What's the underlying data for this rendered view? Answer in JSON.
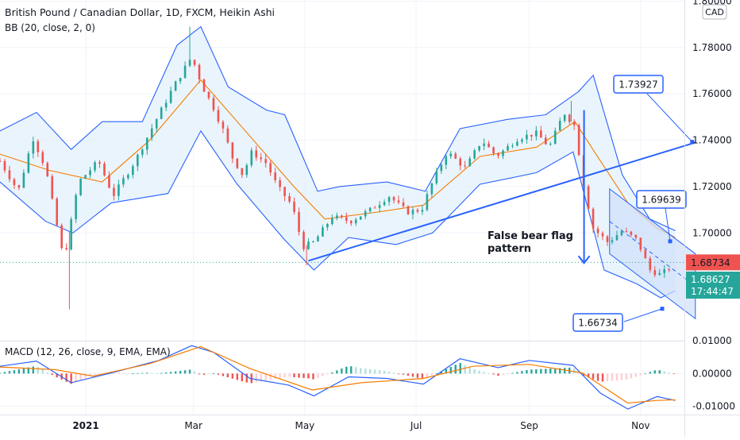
{
  "header": {
    "symbol_line": "British Pound / Canadian Dollar, 1D, FXCM, Heikin Ashi",
    "indicator_line": "BB (20, close, 2, 0)",
    "currency_button": "CAD"
  },
  "macd_label": "MACD (12, 26, close, 9, EMA, EMA)",
  "colors": {
    "up": "#26a69a",
    "down": "#ef5350",
    "band": "#2962ff",
    "basis": "#f57c00",
    "band_fill": "#e3f0fb",
    "channel_fill": "#cfe0fa",
    "trendline": "#2962ff"
  },
  "chart_data": [
    {
      "type": "candlestick",
      "name": "price",
      "y_ticks": [
        "1.80000",
        "1.78000",
        "1.76000",
        "1.74000",
        "1.72000",
        "1.70000"
      ],
      "ylim": [
        1.6535,
        1.8005
      ],
      "x_ticks": [
        "2021",
        "Mar",
        "May",
        "Jul",
        "Sep",
        "Nov"
      ],
      "x_range": [
        "2020-11-15",
        "2021-11-25"
      ],
      "tick_dates": [
        "2021-01-01",
        "2021-03-01",
        "2021-05-01",
        "2021-07-01",
        "2021-09-01",
        "2021-11-01"
      ],
      "candle_path": [
        [
          "2020-11-15",
          1.731
        ],
        [
          "2020-11-25",
          1.718
        ],
        [
          "2020-12-03",
          1.741
        ],
        [
          "2020-12-10",
          1.728
        ],
        [
          "2020-12-20",
          1.688
        ],
        [
          "2020-12-28",
          1.722
        ],
        [
          "2021-01-08",
          1.731
        ],
        [
          "2021-01-16",
          1.716
        ],
        [
          "2021-01-28",
          1.731
        ],
        [
          "2021-02-08",
          1.748
        ],
        [
          "2021-02-18",
          1.763
        ],
        [
          "2021-02-28",
          1.776
        ],
        [
          "2021-03-06",
          1.763
        ],
        [
          "2021-03-12",
          1.754
        ],
        [
          "2021-03-18",
          1.743
        ],
        [
          "2021-03-22",
          1.733
        ],
        [
          "2021-03-28",
          1.725
        ],
        [
          "2021-04-02",
          1.735
        ],
        [
          "2021-04-10",
          1.73
        ],
        [
          "2021-04-16",
          1.72
        ],
        [
          "2021-04-24",
          1.712
        ],
        [
          "2021-04-30",
          1.694
        ],
        [
          "2021-05-06",
          1.696
        ],
        [
          "2021-05-16",
          1.707
        ],
        [
          "2021-05-26",
          1.705
        ],
        [
          "2021-06-06",
          1.71
        ],
        [
          "2021-06-16",
          1.716
        ],
        [
          "2021-06-26",
          1.709
        ],
        [
          "2021-07-04",
          1.71
        ],
        [
          "2021-07-10",
          1.722
        ],
        [
          "2021-07-18",
          1.735
        ],
        [
          "2021-07-28",
          1.728
        ],
        [
          "2021-08-06",
          1.74
        ],
        [
          "2021-08-14",
          1.733
        ],
        [
          "2021-08-26",
          1.741
        ],
        [
          "2021-09-05",
          1.743
        ],
        [
          "2021-09-12",
          1.737
        ],
        [
          "2021-09-20",
          1.752
        ],
        [
          "2021-09-26",
          1.746
        ],
        [
          "2021-10-01",
          1.72
        ],
        [
          "2021-10-06",
          1.702
        ],
        [
          "2021-10-14",
          1.696
        ],
        [
          "2021-10-22",
          1.701
        ],
        [
          "2021-10-30",
          1.697
        ],
        [
          "2021-11-06",
          1.684
        ],
        [
          "2021-11-12",
          1.682
        ],
        [
          "2021-11-19",
          1.686
        ]
      ],
      "spike_highs": [
        [
          "2021-02-27",
          1.789
        ],
        [
          "2021-09-24",
          1.757
        ]
      ],
      "spike_lows": [
        [
          "2020-12-23",
          1.667
        ],
        [
          "2021-05-02",
          1.686
        ]
      ],
      "bollinger_upper": [
        [
          "2020-11-15",
          1.744
        ],
        [
          "2020-12-05",
          1.752
        ],
        [
          "2020-12-24",
          1.736
        ],
        [
          "2021-01-10",
          1.748
        ],
        [
          "2021-02-01",
          1.748
        ],
        [
          "2021-02-20",
          1.781
        ],
        [
          "2021-03-05",
          1.789
        ],
        [
          "2021-03-20",
          1.763
        ],
        [
          "2021-04-10",
          1.753
        ],
        [
          "2021-04-20",
          1.751
        ],
        [
          "2021-05-08",
          1.718
        ],
        [
          "2021-05-20",
          1.72
        ],
        [
          "2021-06-15",
          1.722
        ],
        [
          "2021-07-06",
          1.718
        ],
        [
          "2021-07-25",
          1.745
        ],
        [
          "2021-08-20",
          1.749
        ],
        [
          "2021-09-10",
          1.751
        ],
        [
          "2021-09-28",
          1.761
        ],
        [
          "2021-10-06",
          1.768
        ],
        [
          "2021-10-22",
          1.725
        ],
        [
          "2021-11-06",
          1.706
        ],
        [
          "2021-11-20",
          1.701
        ]
      ],
      "bollinger_basis": [
        [
          "2020-11-15",
          1.734
        ],
        [
          "2020-12-12",
          1.727
        ],
        [
          "2021-01-10",
          1.722
        ],
        [
          "2021-02-05",
          1.74
        ],
        [
          "2021-03-05",
          1.766
        ],
        [
          "2021-03-25",
          1.748
        ],
        [
          "2021-04-25",
          1.72
        ],
        [
          "2021-05-12",
          1.706
        ],
        [
          "2021-06-10",
          1.709
        ],
        [
          "2021-07-05",
          1.712
        ],
        [
          "2021-08-05",
          1.733
        ],
        [
          "2021-09-05",
          1.737
        ],
        [
          "2021-09-26",
          1.748
        ],
        [
          "2021-10-10",
          1.731
        ],
        [
          "2021-10-25",
          1.713
        ],
        [
          "2021-11-10",
          1.702
        ],
        [
          "2021-11-20",
          1.698
        ]
      ],
      "bollinger_lower": [
        [
          "2020-11-15",
          1.722
        ],
        [
          "2020-12-10",
          1.705
        ],
        [
          "2020-12-25",
          1.7
        ],
        [
          "2021-01-15",
          1.713
        ],
        [
          "2021-02-15",
          1.717
        ],
        [
          "2021-03-05",
          1.744
        ],
        [
          "2021-03-25",
          1.721
        ],
        [
          "2021-04-20",
          1.697
        ],
        [
          "2021-05-06",
          1.684
        ],
        [
          "2021-05-25",
          1.698
        ],
        [
          "2021-06-20",
          1.695
        ],
        [
          "2021-07-10",
          1.7
        ],
        [
          "2021-08-05",
          1.721
        ],
        [
          "2021-09-05",
          1.726
        ],
        [
          "2021-09-25",
          1.735
        ],
        [
          "2021-10-12",
          1.684
        ],
        [
          "2021-10-30",
          1.678
        ],
        [
          "2021-11-12",
          1.672
        ],
        [
          "2021-11-20",
          1.675
        ]
      ],
      "trendline": [
        [
          "2021-05-03",
          1.688
        ],
        [
          "2021-12-01",
          1.739
        ]
      ],
      "channel": {
        "upper": [
          [
            "2021-10-15",
            1.719
          ],
          [
            "2021-12-01",
            1.691
          ]
        ],
        "lower": [
          [
            "2021-10-15",
            1.691
          ],
          [
            "2021-12-01",
            1.663
          ]
        ]
      },
      "annotations": {
        "false_bear_flag": "False bear flag\npattern",
        "arrow_from": [
          "2021-10-01",
          1.753
        ],
        "arrow_to": [
          "2021-10-01",
          1.687
        ],
        "callout_top": "1.73927",
        "callout_mid": "1.69639",
        "callout_bottom": "1.66734",
        "dotted_level": 1.6873
      },
      "price_labels": {
        "red_tag": "1.68734",
        "green_tag": "1.68627",
        "countdown": "17:44:47"
      }
    },
    {
      "type": "line",
      "name": "MACD",
      "y_ticks": [
        "0.01000",
        "0.00000",
        "-0.01000"
      ],
      "ylim": [
        -0.0125,
        0.01
      ],
      "series": [
        {
          "name": "MACD",
          "color": "#2962ff",
          "points": [
            [
              "2020-11-15",
              0.0022
            ],
            [
              "2020-12-05",
              0.0038
            ],
            [
              "2020-12-24",
              -0.0028
            ],
            [
              "2021-01-15",
              0.0002
            ],
            [
              "2021-02-10",
              0.004
            ],
            [
              "2021-02-28",
              0.0085
            ],
            [
              "2021-03-12",
              0.0065
            ],
            [
              "2021-04-01",
              -0.0015
            ],
            [
              "2021-04-22",
              -0.0035
            ],
            [
              "2021-05-06",
              -0.0068
            ],
            [
              "2021-05-25",
              -0.001
            ],
            [
              "2021-06-15",
              -0.0015
            ],
            [
              "2021-07-05",
              -0.0032
            ],
            [
              "2021-07-25",
              0.0045
            ],
            [
              "2021-08-15",
              0.0018
            ],
            [
              "2021-09-01",
              0.004
            ],
            [
              "2021-09-25",
              0.0025
            ],
            [
              "2021-10-10",
              -0.006
            ],
            [
              "2021-10-25",
              -0.0108
            ],
            [
              "2021-11-10",
              -0.007
            ],
            [
              "2021-11-20",
              -0.0082
            ]
          ]
        },
        {
          "name": "Signal",
          "color": "#f57c00",
          "points": [
            [
              "2020-11-15",
              0.002
            ],
            [
              "2020-12-15",
              0.0012
            ],
            [
              "2021-01-05",
              -0.0008
            ],
            [
              "2021-02-05",
              0.003
            ],
            [
              "2021-03-05",
              0.0082
            ],
            [
              "2021-04-01",
              0.0015
            ],
            [
              "2021-05-05",
              -0.005
            ],
            [
              "2021-06-01",
              -0.0028
            ],
            [
              "2021-07-05",
              -0.0015
            ],
            [
              "2021-08-01",
              0.0022
            ],
            [
              "2021-09-01",
              0.0028
            ],
            [
              "2021-09-30",
              0.0002
            ],
            [
              "2021-10-25",
              -0.009
            ],
            [
              "2021-11-10",
              -0.0082
            ],
            [
              "2021-11-20",
              -0.008
            ]
          ]
        }
      ]
    }
  ]
}
